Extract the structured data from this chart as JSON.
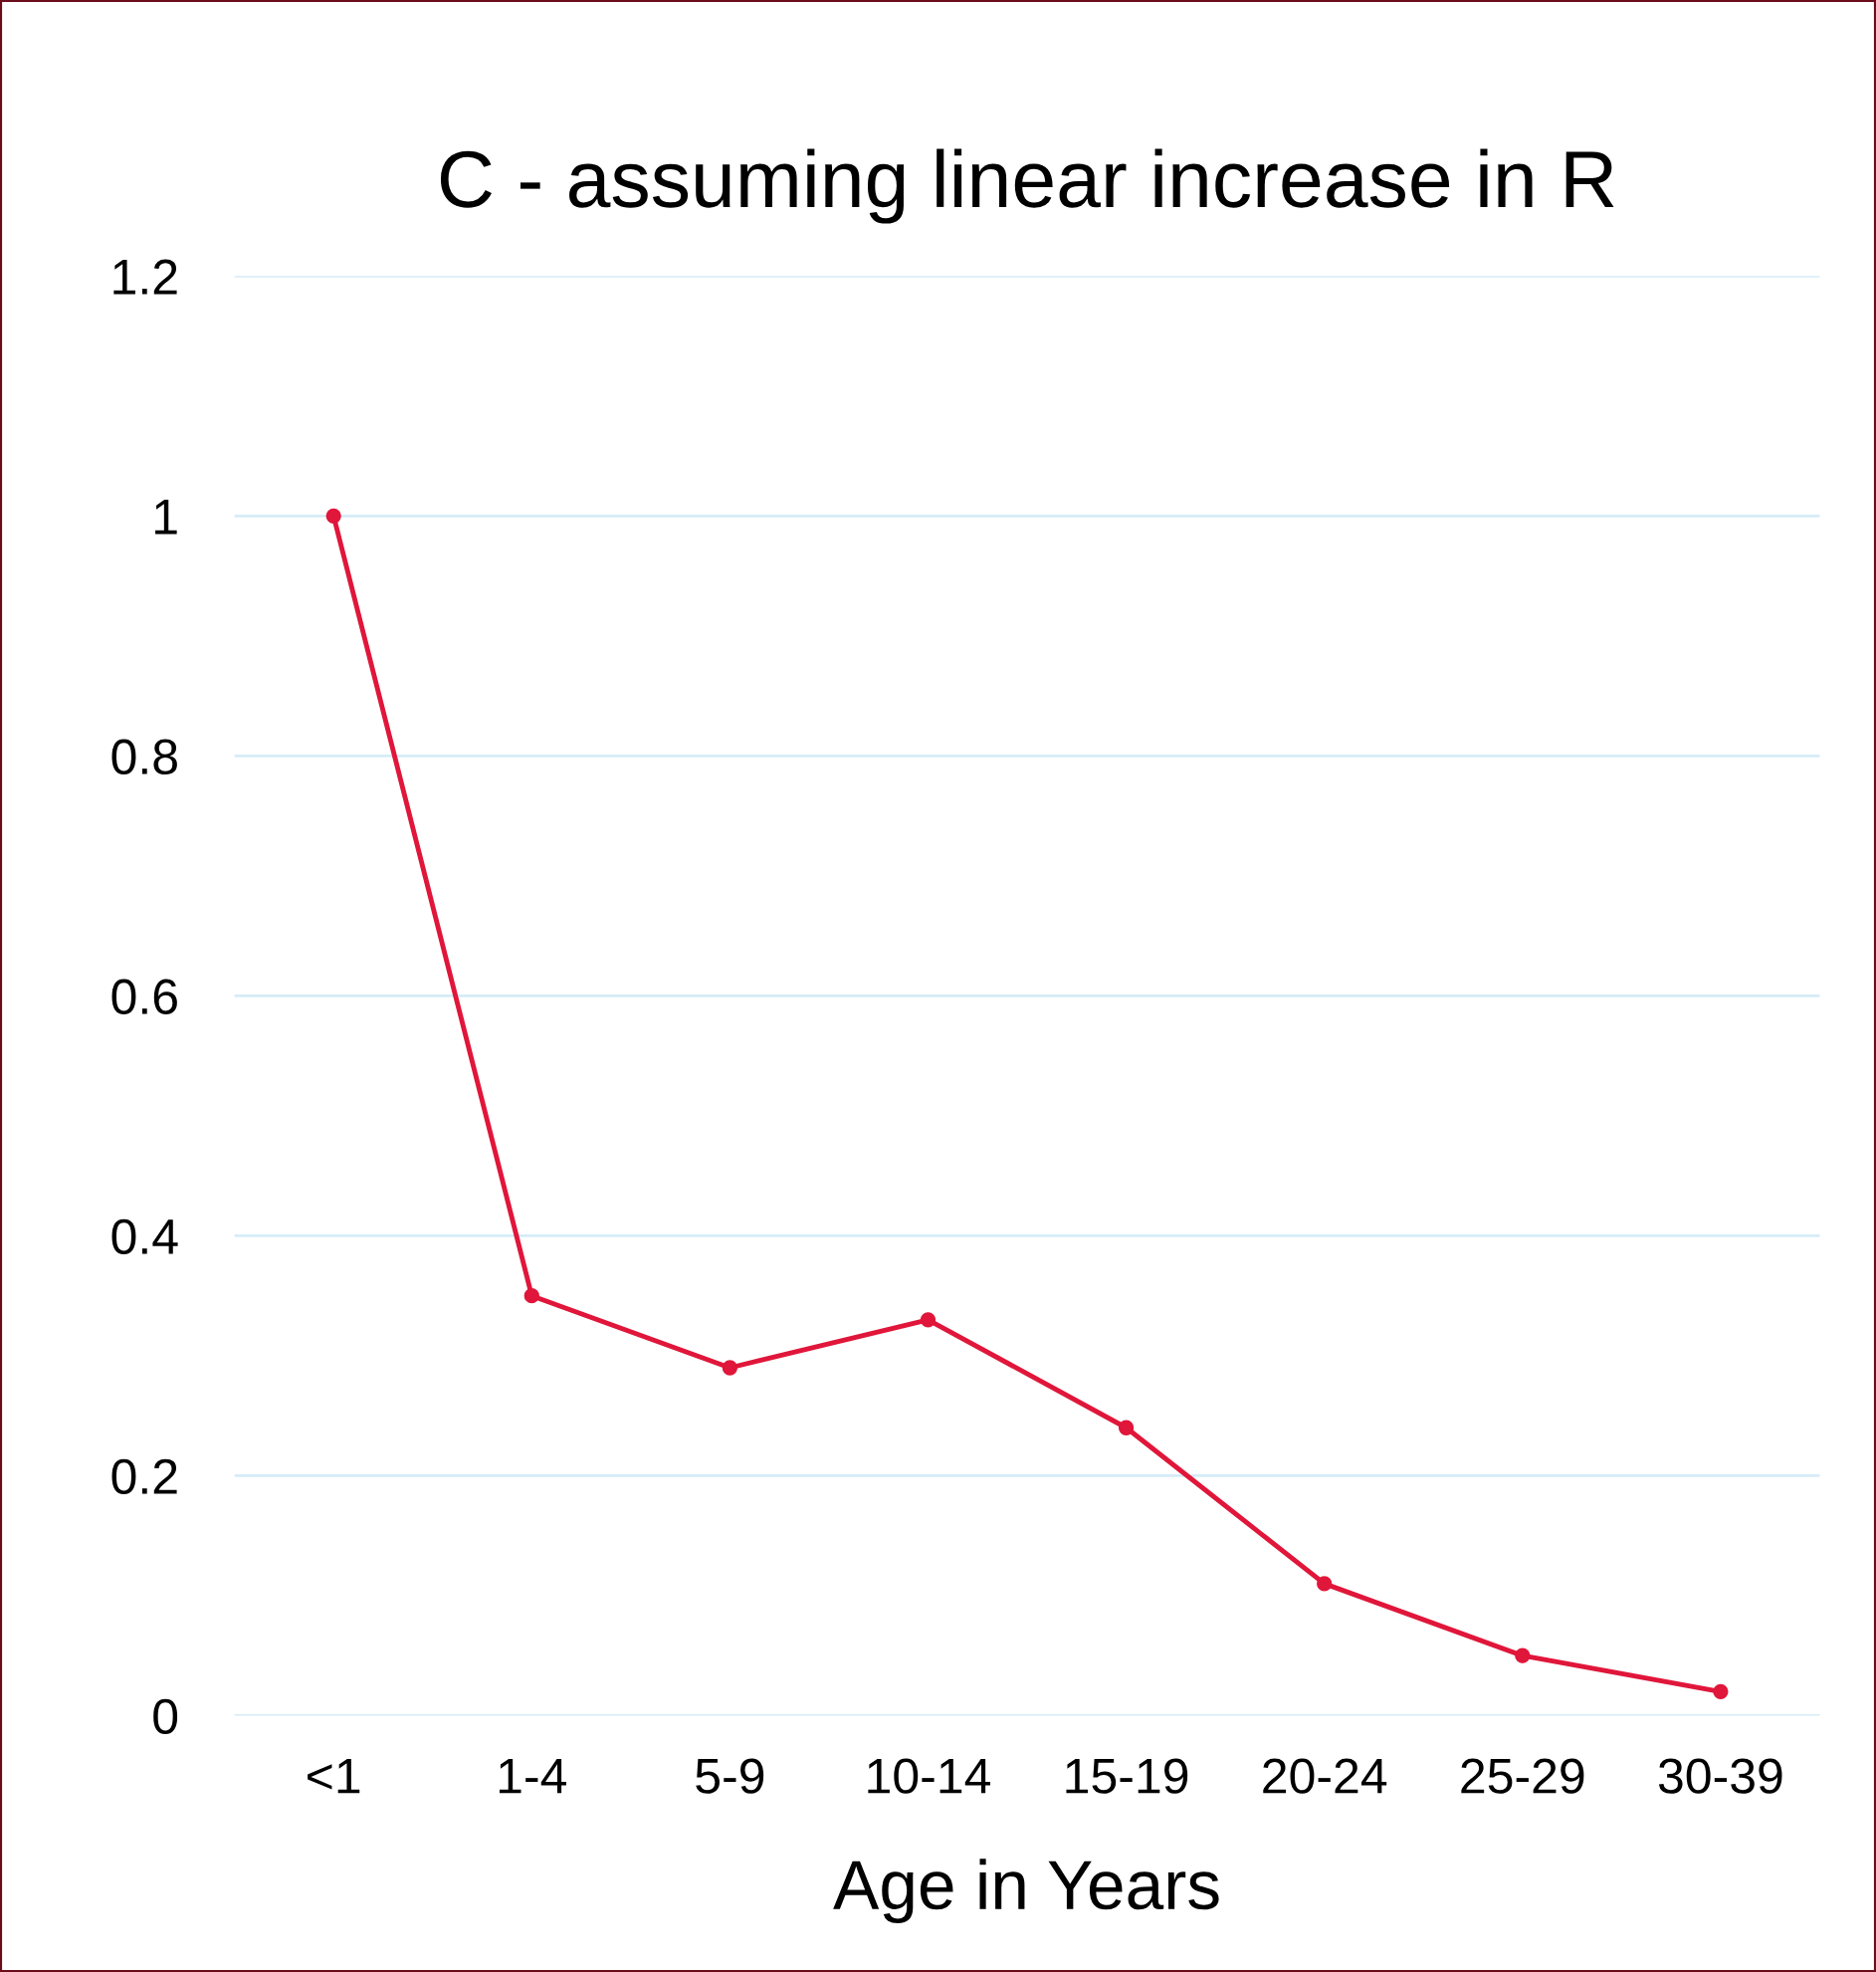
{
  "chart_data": {
    "type": "line",
    "title": "C - assuming linear increase in R",
    "xlabel": "Age in Years",
    "categories": [
      "<1",
      "1-4",
      "5-9",
      "10-14",
      "15-19",
      "20-24",
      "25-29",
      "30-39"
    ],
    "series": [
      {
        "color": "#e0163a",
        "values": [
          1.0,
          0.35,
          0.29,
          0.33,
          0.24,
          0.11,
          0.05,
          0.02
        ]
      }
    ],
    "ylim": [
      0,
      1.2
    ],
    "yticks": [
      0,
      0.2,
      0.4,
      0.6,
      0.8,
      1,
      1.2
    ],
    "grid": "y",
    "marker": "circle",
    "line_style": "solid",
    "legend": false
  }
}
